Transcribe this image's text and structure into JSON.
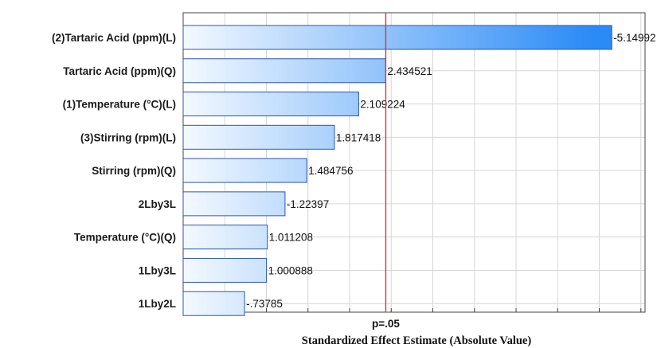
{
  "chart_data": {
    "type": "bar",
    "orientation": "horizontal",
    "categories": [
      "(2)Tartaric Acid (ppm)(L)",
      "Tartaric Acid (ppm)(Q)",
      "(1)Temperature (°C)(L)",
      "(3)Stirring (rpm)(L)",
      "Stirring (rpm)(Q)",
      "2Lby3L",
      "Temperature (°C)(Q)",
      "1Lby3L",
      "1Lby2L"
    ],
    "values": [
      5.14992,
      2.434521,
      2.109224,
      1.817418,
      1.484756,
      1.22397,
      1.011208,
      1.000888,
      0.73785
    ],
    "value_labels": [
      "-5.14992",
      "2.434521",
      "2.109224",
      "1.817418",
      "1.484756",
      "-1.22397",
      "1.011208",
      "1.000888",
      "-.73785"
    ],
    "xlabel": "Standardized Effect Estimate (Absolute Value)",
    "ylabel": "",
    "reference_line": {
      "value": 2.4345,
      "label": "p=.05",
      "color": "#e0312e"
    },
    "xlim": [
      0,
      5.55
    ],
    "grid": true,
    "colors": {
      "bar_light": "#f4f9ff",
      "bar_dark": "#2a8af6",
      "bar_edge": "#2c55b8",
      "grid": "#d6d6d6"
    }
  }
}
